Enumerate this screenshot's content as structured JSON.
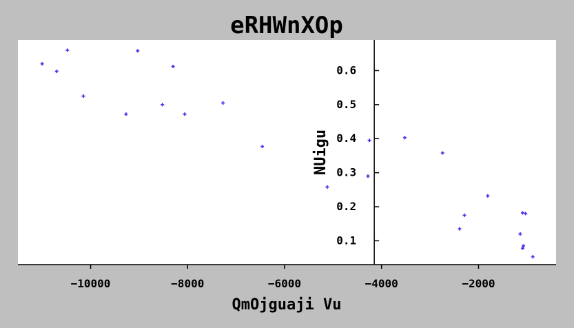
{
  "chart_data": {
    "type": "scatter",
    "title": "eRHWnXOp",
    "xlabel": "QmOjguaji Vu",
    "ylabel": "NUigu",
    "xlim": [
      -11500,
      -400
    ],
    "ylim": [
      0.03,
      0.69
    ],
    "x_ticks": [
      -10000,
      -8000,
      -6000,
      -4000,
      -2000
    ],
    "x_tick_labels": [
      "−10000",
      "−8000",
      "−6000",
      "−4000",
      "−2000"
    ],
    "y_ticks": [
      0.1,
      0.2,
      0.3,
      0.4,
      0.5,
      0.6
    ],
    "y_tick_labels": [
      "0.1",
      "0.2",
      "0.3",
      "0.4",
      "0.5",
      "0.6"
    ],
    "y_axis_at_x": -4150,
    "grid": false,
    "legend": "none",
    "marker": "+",
    "colors": {
      "figure_background": "#bfbfbf",
      "plot_background": "#ffffff",
      "marker": "#5533ee",
      "axis": "#000000"
    },
    "points": [
      {
        "x": -11000,
        "y": 0.62
      },
      {
        "x": -10700,
        "y": 0.598
      },
      {
        "x": -10480,
        "y": 0.66
      },
      {
        "x": -10150,
        "y": 0.525
      },
      {
        "x": -9270,
        "y": 0.472
      },
      {
        "x": -9030,
        "y": 0.658
      },
      {
        "x": -8520,
        "y": 0.5
      },
      {
        "x": -8300,
        "y": 0.612
      },
      {
        "x": -8060,
        "y": 0.472
      },
      {
        "x": -7270,
        "y": 0.505
      },
      {
        "x": -6460,
        "y": 0.377
      },
      {
        "x": -5120,
        "y": 0.258
      },
      {
        "x": -4280,
        "y": 0.29
      },
      {
        "x": -4250,
        "y": 0.395
      },
      {
        "x": -3520,
        "y": 0.403
      },
      {
        "x": -2740,
        "y": 0.358
      },
      {
        "x": -2390,
        "y": 0.135
      },
      {
        "x": -2290,
        "y": 0.175
      },
      {
        "x": -1810,
        "y": 0.232
      },
      {
        "x": -1140,
        "y": 0.12
      },
      {
        "x": -1090,
        "y": 0.182
      },
      {
        "x": -1090,
        "y": 0.078
      },
      {
        "x": -1075,
        "y": 0.085
      },
      {
        "x": -1030,
        "y": 0.18
      },
      {
        "x": -880,
        "y": 0.053
      }
    ]
  }
}
